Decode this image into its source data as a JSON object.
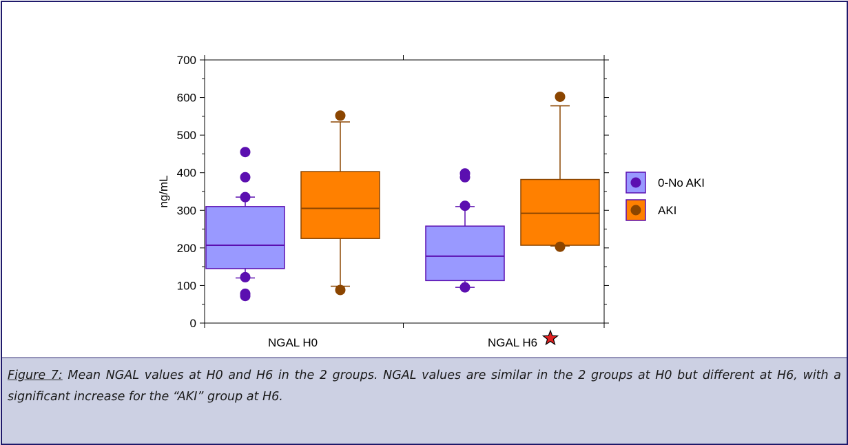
{
  "chart_data": {
    "type": "box",
    "ylabel": "ng/mL",
    "xlabel": "",
    "ylim": [
      0,
      700
    ],
    "yticks": [
      "0",
      "100",
      "200",
      "300",
      "400",
      "500",
      "600",
      "700"
    ],
    "categories": [
      "NGAL H0",
      "NGAL H6"
    ],
    "significance_marker": {
      "category": "NGAL H6",
      "symbol": "star",
      "color": "#e02020"
    },
    "legend": {
      "position": "right",
      "entries": [
        {
          "name": "0-No AKI",
          "fill": "#9999ff",
          "marker": "#5b0fb0"
        },
        {
          "name": "AKI",
          "fill": "#ff8000",
          "marker": "#8b4500"
        }
      ]
    },
    "series": [
      {
        "name": "0-No AKI",
        "box_fill": "#9999ff",
        "line_color": "#5b0fb0",
        "outlier_color": "#5b0fb0",
        "boxes": [
          {
            "category": "NGAL H0",
            "whisker_low": 120,
            "q1": 145,
            "median": 207,
            "q3": 310,
            "whisker_high": 335,
            "outliers": [
              455,
              388,
              335,
              122,
              78,
              72
            ]
          },
          {
            "category": "NGAL H6",
            "whisker_low": 95,
            "q1": 113,
            "median": 178,
            "q3": 258,
            "whisker_high": 310,
            "outliers": [
              398,
              388,
              312,
              95
            ]
          }
        ]
      },
      {
        "name": "AKI",
        "box_fill": "#ff8000",
        "line_color": "#8b4500",
        "outlier_color": "#8b4500",
        "boxes": [
          {
            "category": "NGAL H0",
            "whisker_low": 98,
            "q1": 225,
            "median": 305,
            "q3": 403,
            "whisker_high": 535,
            "outliers": [
              552,
              88
            ]
          },
          {
            "category": "NGAL H6",
            "whisker_low": 205,
            "q1": 207,
            "median": 292,
            "q3": 382,
            "whisker_high": 578,
            "outliers": [
              602,
              203
            ]
          }
        ]
      }
    ]
  },
  "caption": {
    "label": "Figure 7:",
    "text": " Mean NGAL values at H0 and H6 in the 2 groups. NGAL values are similar in the 2 groups at H0 but different at H6, with a significant increase for the “AKI” group at H6."
  }
}
